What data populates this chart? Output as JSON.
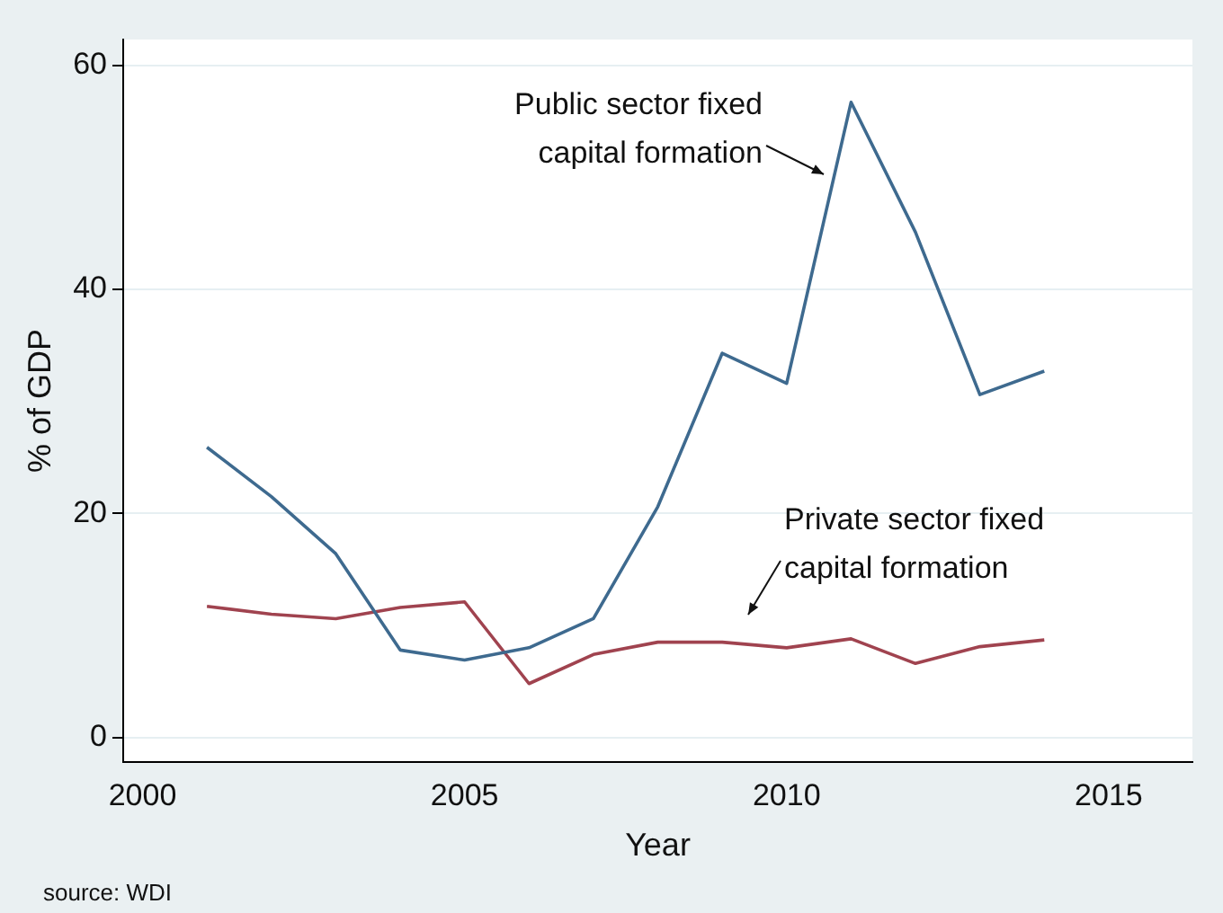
{
  "chart_data": {
    "type": "line",
    "xlabel": "Year",
    "ylabel": "% of GDP",
    "x": [
      2001,
      2002,
      2003,
      2004,
      2005,
      2006,
      2007,
      2008,
      2009,
      2010,
      2011,
      2012,
      2013,
      2014
    ],
    "series": [
      {
        "color": "#3e6a8f",
        "values": [
          25.9,
          21.5,
          16.4,
          7.8,
          6.9,
          8.0,
          10.6,
          20.6,
          34.3,
          31.6,
          56.7,
          45.1,
          30.6,
          32.7
        ]
      },
      {
        "color": "#a0434f",
        "values": [
          11.7,
          11.0,
          10.6,
          11.6,
          12.1,
          4.8,
          7.4,
          8.5,
          8.5,
          8.0,
          8.8,
          6.6,
          8.1,
          8.7
        ]
      }
    ],
    "xlim": [
      1999.7,
      2016.3
    ],
    "xticks": [
      2000,
      2005,
      2010,
      2015
    ],
    "ylim": [
      -2.2,
      62.3
    ],
    "yticks": [
      0,
      20,
      40,
      60
    ],
    "grid": "y",
    "legend": false,
    "marker": "none",
    "line_style": "solid",
    "annotations": [
      "Public sector fixed\ncapital formation",
      "Private sector fixed\ncapital formation",
      "source: WDI"
    ]
  }
}
